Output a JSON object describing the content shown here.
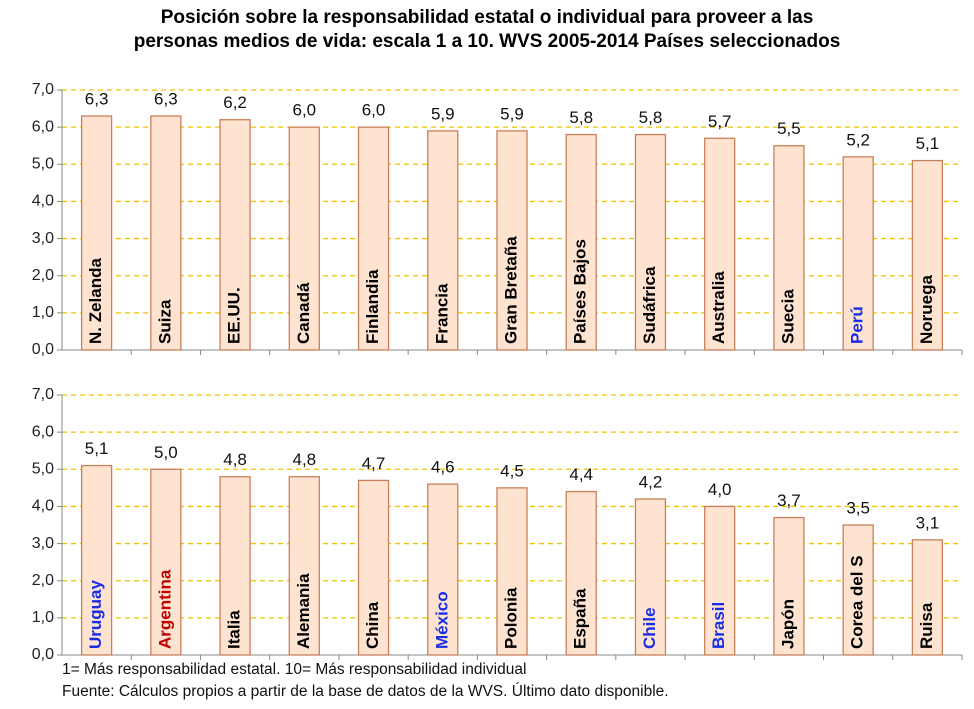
{
  "title": [
    "Posición sobre la responsabilidad estatal o individual para proveer a las",
    "personas medios de vida: escala 1 a 10. WVS 2005-2014 Países seleccionados"
  ],
  "notes": [
    "1= Más responsabilidad estatal. 10= Más responsabilidad individual",
    "Fuente: Cálculos propios a partir de la base de datos de la WVS. Último dato disponible."
  ],
  "chart_data": [
    {
      "type": "bar",
      "categories": [
        "N. Zelanda",
        "Suiza",
        "EE.UU.",
        "Canadá",
        "Finlandia",
        "Francia",
        "Gran Bretaña",
        "Países Bajos",
        "Sudáfrica",
        "Australia",
        "Suecia",
        "Perú",
        "Noruega"
      ],
      "category_colors": [
        "#000000",
        "#000000",
        "#000000",
        "#000000",
        "#000000",
        "#000000",
        "#000000",
        "#000000",
        "#000000",
        "#000000",
        "#000000",
        "#1a2ee8",
        "#000000"
      ],
      "values": [
        6.3,
        6.3,
        6.2,
        6.0,
        6.0,
        5.9,
        5.9,
        5.8,
        5.8,
        5.7,
        5.5,
        5.2,
        5.1
      ],
      "value_labels": [
        "6,3",
        "6,3",
        "6,2",
        "6,0",
        "6,0",
        "5,9",
        "5,9",
        "5,8",
        "5,8",
        "5,7",
        "5,5",
        "5,2",
        "5,1"
      ],
      "color": "#fde3d0",
      "ylim": [
        0,
        7
      ],
      "yticks": [
        {
          "value": 0,
          "label": "0,0"
        },
        {
          "value": 1,
          "label": "1,0"
        },
        {
          "value": 2,
          "label": "2,0"
        },
        {
          "value": 3,
          "label": "3,0"
        },
        {
          "value": 4,
          "label": "4,0"
        },
        {
          "value": 5,
          "label": "5,0"
        },
        {
          "value": 6,
          "label": "6,0"
        },
        {
          "value": 7,
          "label": "7,0"
        }
      ],
      "grid": true
    },
    {
      "type": "bar",
      "categories": [
        "Uruguay",
        "Argentina",
        "Italia",
        "Alemania",
        "China",
        "México",
        "Polonia",
        "España",
        "Chile",
        "Brasil",
        "Japón",
        "Corea del S",
        "Ruisa"
      ],
      "category_colors": [
        "#1a2ee8",
        "#c00000",
        "#000000",
        "#000000",
        "#000000",
        "#1a2ee8",
        "#000000",
        "#000000",
        "#1a2ee8",
        "#1a2ee8",
        "#000000",
        "#000000",
        "#000000"
      ],
      "values": [
        5.1,
        5.0,
        4.8,
        4.8,
        4.7,
        4.6,
        4.5,
        4.4,
        4.2,
        4.0,
        3.7,
        3.5,
        3.1
      ],
      "value_labels": [
        "5,1",
        "5,0",
        "4,8",
        "4,8",
        "4,7",
        "4,6",
        "4,5",
        "4,4",
        "4,2",
        "4,0",
        "3,7",
        "3,5",
        "3,1"
      ],
      "color": "#fde3d0",
      "ylim": [
        0,
        7
      ],
      "yticks": [
        {
          "value": 0,
          "label": "0,0"
        },
        {
          "value": 1,
          "label": "1,0"
        },
        {
          "value": 2,
          "label": "2,0"
        },
        {
          "value": 3,
          "label": "3,0"
        },
        {
          "value": 4,
          "label": "4,0"
        },
        {
          "value": 5,
          "label": "5,0"
        },
        {
          "value": 6,
          "label": "6,0"
        },
        {
          "value": 7,
          "label": "7,0"
        }
      ],
      "grid": true
    }
  ]
}
